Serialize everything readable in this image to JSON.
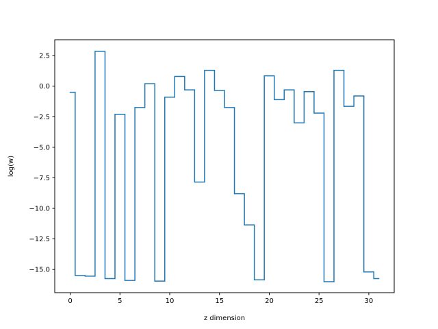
{
  "chart_data": {
    "type": "line",
    "drawstyle": "steps-mid",
    "xlabel": "z dimension",
    "ylabel": "log(w)",
    "xlim": [
      -1.55,
      32.55
    ],
    "ylim": [
      -16.9,
      3.8
    ],
    "grid": false,
    "x_ticks": [
      0,
      5,
      10,
      15,
      20,
      25,
      30
    ],
    "x_tick_labels": [
      "0",
      "5",
      "10",
      "15",
      "20",
      "25",
      "30"
    ],
    "y_ticks": [
      2.5,
      0.0,
      -2.5,
      -5.0,
      -7.5,
      -10.0,
      -12.5,
      -15.0
    ],
    "y_tick_labels": [
      "2.5",
      "0.0",
      "−2.5",
      "−5.0",
      "−7.5",
      "−10.0",
      "−12.5",
      "−15.0"
    ],
    "series": [
      {
        "color": "#1f77b4",
        "x": [
          0,
          1,
          2,
          3,
          4,
          5,
          6,
          7,
          8,
          9,
          10,
          11,
          12,
          13,
          14,
          15,
          16,
          17,
          18,
          19,
          20,
          21,
          22,
          23,
          24,
          25,
          26,
          27,
          28,
          29,
          30,
          31
        ],
        "y": [
          -0.5,
          -15.5,
          -15.55,
          2.85,
          -15.75,
          -2.3,
          -15.9,
          -1.75,
          0.2,
          -15.95,
          -0.9,
          0.8,
          -0.3,
          -7.85,
          1.3,
          -0.35,
          -1.75,
          -8.8,
          -11.35,
          -15.85,
          0.85,
          -1.1,
          -0.3,
          -3.0,
          -0.45,
          -2.2,
          -16.0,
          1.3,
          -1.65,
          -0.8,
          -15.2,
          -15.75
        ]
      }
    ]
  }
}
